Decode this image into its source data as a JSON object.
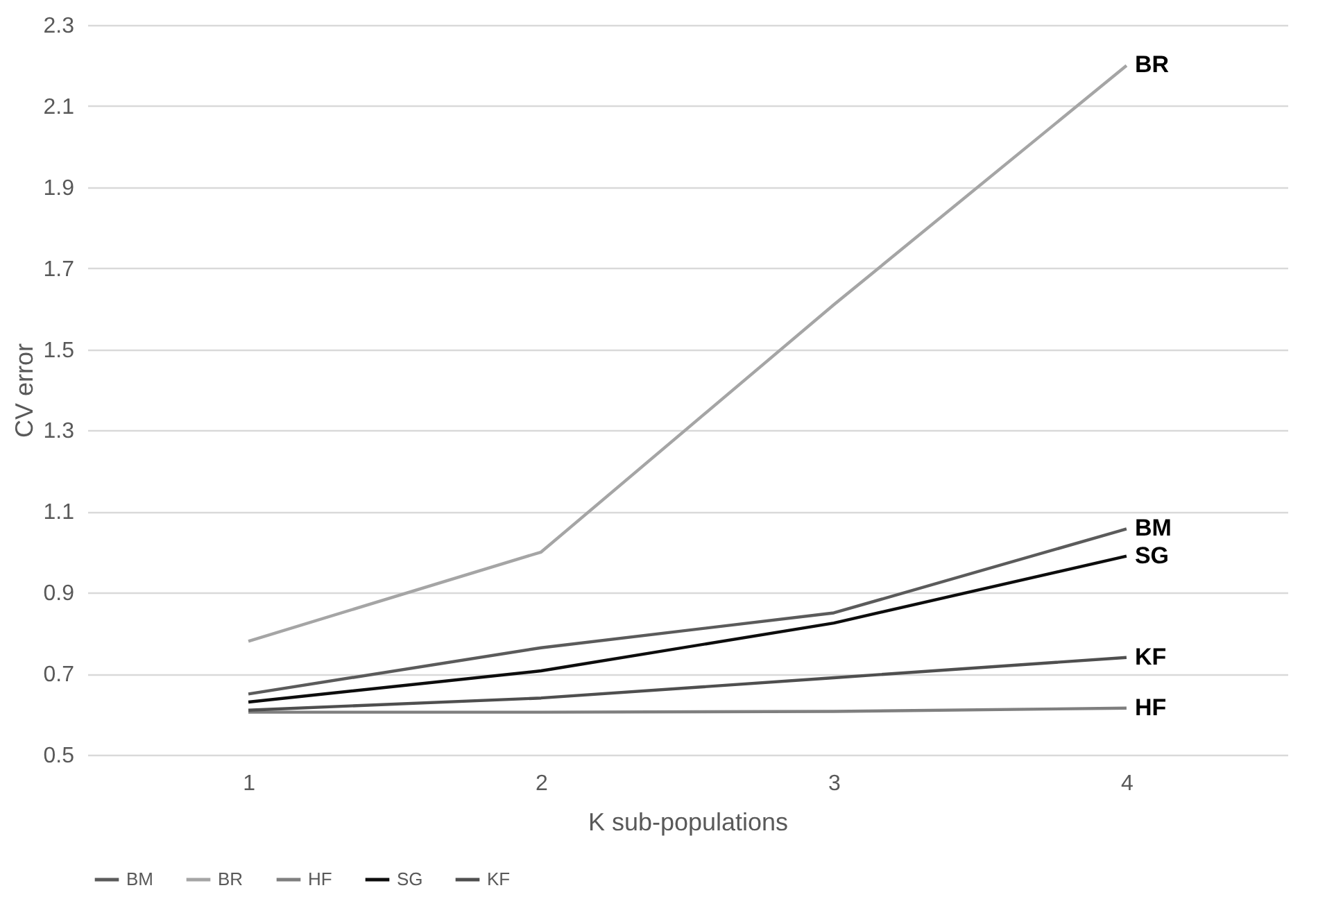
{
  "chart_data": {
    "type": "line",
    "xlabel": "K sub-populations",
    "ylabel": "CV error",
    "categories": [
      "1",
      "2",
      "3",
      "4"
    ],
    "ylim": [
      0.5,
      2.3
    ],
    "yticks": [
      0.5,
      0.7,
      0.9,
      1.1,
      1.3,
      1.5,
      1.7,
      1.9,
      2.1,
      2.3
    ],
    "grid": "y",
    "legend": "bottom",
    "marker": "none",
    "line_style": "solid",
    "series": [
      {
        "name": "BM",
        "color": "#5b5b5b",
        "values": [
          0.65,
          0.764,
          0.85,
          1.057
        ]
      },
      {
        "name": "BR",
        "color": "#a5a5a5",
        "values": [
          0.78,
          1.0,
          1.61,
          2.2
        ]
      },
      {
        "name": "HF",
        "color": "#7f7f7f",
        "values": [
          0.605,
          0.605,
          0.607,
          0.615
        ]
      },
      {
        "name": "SG",
        "color": "#0d0d0d",
        "values": [
          0.63,
          0.707,
          0.825,
          0.99
        ]
      },
      {
        "name": "KF",
        "color": "#4f4f4f",
        "values": [
          0.61,
          0.64,
          0.69,
          0.74
        ]
      }
    ]
  }
}
